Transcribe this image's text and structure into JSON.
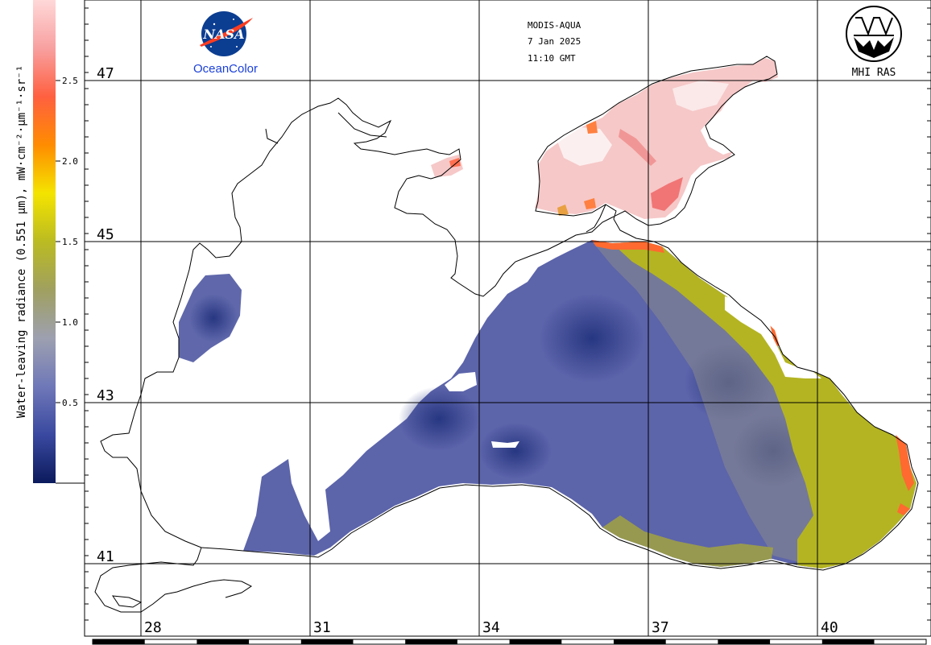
{
  "colorbar": {
    "title": "Water-leaving radiance (0.551 µm), mW·cm⁻²·µm⁻¹·sr⁻¹",
    "ticks": [
      {
        "value": 2.5,
        "label": "2.5"
      },
      {
        "value": 2.0,
        "label": "2.0"
      },
      {
        "value": 1.5,
        "label": "1.5"
      },
      {
        "value": 1.0,
        "label": "1.0"
      },
      {
        "value": 0.5,
        "label": "0.5"
      }
    ],
    "min": 0,
    "max": 3,
    "stops": [
      "#0b1a5c",
      "#3a49a0",
      "#6f78b8",
      "#9da0b0",
      "#a0a060",
      "#bbbb22",
      "#f4e400",
      "#ff8c00",
      "#ff6040",
      "#f8a0a0",
      "#ffd8d8"
    ]
  },
  "header": {
    "sensor": "MODIS-AQUA",
    "date": "7 Jan 2025",
    "time": "11:10 GMT"
  },
  "logos": {
    "nasa_text": "NASA",
    "oceancolor": "OceanColor",
    "mhi": "MHI RAS"
  },
  "map": {
    "latitudes": [
      {
        "value": 47,
        "label": "47"
      },
      {
        "value": 45,
        "label": "45"
      },
      {
        "value": 43,
        "label": "43"
      },
      {
        "value": 41,
        "label": "41"
      }
    ],
    "longitudes": [
      {
        "value": 28,
        "label": "28"
      },
      {
        "value": 31,
        "label": "31"
      },
      {
        "value": 34,
        "label": "34"
      },
      {
        "value": 37,
        "label": "37"
      },
      {
        "value": 40,
        "label": "40"
      }
    ],
    "colors": {
      "open_sea": "#5a62a8",
      "deep_eddy": "#2c3a8a",
      "coastal_yellow": "#b4b41c",
      "azov_pink": "#f6c8c8",
      "hotspot": "#ff6a30",
      "coastline": "#000000"
    }
  }
}
